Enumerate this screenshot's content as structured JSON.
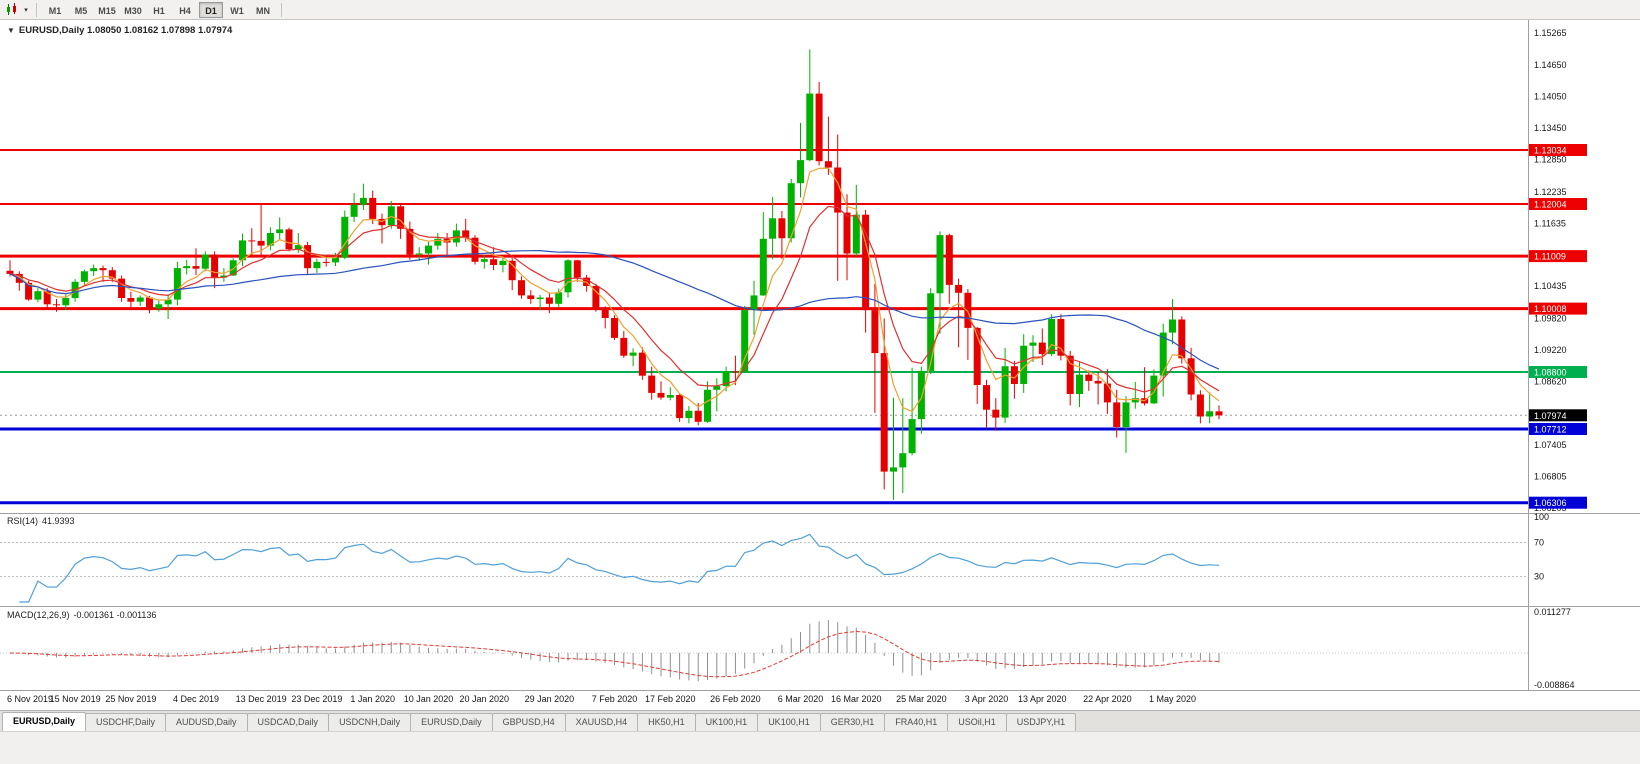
{
  "toolbar": {
    "caret_glyph": "▾",
    "timeframes": [
      "M1",
      "M5",
      "M15",
      "M30",
      "H1",
      "H4",
      "D1",
      "W1",
      "MN"
    ],
    "active_timeframe": "D1"
  },
  "chart": {
    "menu_glyph": "▼",
    "title": "EURUSD,Daily 1.08050 1.08162 1.07898 1.07974",
    "symbol": "EURUSD",
    "period": "Daily",
    "open": "1.08050",
    "high": "1.08162",
    "low": "1.07898",
    "close": "1.07974",
    "colors": {
      "background": "#FFFFFF",
      "bull": "#00B200",
      "bear": "#E60000",
      "separator": "#A0A0A0",
      "axis_text": "#151515",
      "current_price_line": "#9A9A9A"
    },
    "moving_averages": [
      {
        "type": "EMA",
        "period": 5,
        "color": "#F0A030"
      },
      {
        "type": "EMA",
        "period": 10,
        "color": "#E03030"
      },
      {
        "type": "SMA",
        "period": 40,
        "color": "#2A52BE"
      }
    ],
    "price_scale_ticks": [
      "1.15265",
      "1.14650",
      "1.14050",
      "1.13450",
      "1.12850",
      "1.12235",
      "1.11635",
      "1.10435",
      "1.09820",
      "1.09220",
      "1.08620",
      "1.07405",
      "1.06805",
      "1.06205"
    ],
    "hlines": [
      {
        "price": 1.13034,
        "label": "1.13034",
        "color": "#EE0000",
        "width": 2
      },
      {
        "price": 1.12004,
        "label": "1.12004",
        "color": "#EE0000",
        "width": 2
      },
      {
        "price": 1.11009,
        "label": "1.11009",
        "color": "#EE0000",
        "width": 3
      },
      {
        "price": 1.10008,
        "label": "1.10008",
        "color": "#EE0000",
        "width": 3
      },
      {
        "price": 1.088,
        "label": "1.08800",
        "color": "#00B050",
        "width": 2
      },
      {
        "price": 1.07712,
        "label": "1.07712",
        "color": "#0000D8",
        "width": 3
      },
      {
        "price": 1.06306,
        "label": "1.06306",
        "color": "#0000D8",
        "width": 3
      }
    ],
    "current_price": {
      "label": "1.07974",
      "value": 1.07974,
      "label_bg": "#000000"
    },
    "date_labels": [
      {
        "label": "6 Nov 2019",
        "i": 0
      },
      {
        "label": "15 Nov 2019",
        "i": 7
      },
      {
        "label": "25 Nov 2019",
        "i": 13
      },
      {
        "label": "4 Dec 2019",
        "i": 20
      },
      {
        "label": "13 Dec 2019",
        "i": 27
      },
      {
        "label": "23 Dec 2019",
        "i": 33
      },
      {
        "label": "1 Jan 2020",
        "i": 39
      },
      {
        "label": "10 Jan 2020",
        "i": 45
      },
      {
        "label": "20 Jan 2020",
        "i": 51
      },
      {
        "label": "29 Jan 2020",
        "i": 58
      },
      {
        "label": "7 Feb 2020",
        "i": 65
      },
      {
        "label": "17 Feb 2020",
        "i": 71
      },
      {
        "label": "26 Feb 2020",
        "i": 78
      },
      {
        "label": "6 Mar 2020",
        "i": 85
      },
      {
        "label": "16 Mar 2020",
        "i": 91
      },
      {
        "label": "25 Mar 2020",
        "i": 98
      },
      {
        "label": "3 Apr 2020",
        "i": 105
      },
      {
        "label": "13 Apr 2020",
        "i": 111
      },
      {
        "label": "22 Apr 2020",
        "i": 118
      },
      {
        "label": "1 May 2020",
        "i": 125
      }
    ],
    "candles": [
      [
        1.1073,
        1.1093,
        1.1062,
        1.1067
      ],
      [
        1.1067,
        1.1072,
        1.1035,
        1.105
      ],
      [
        1.105,
        1.1054,
        1.1016,
        1.1018
      ],
      [
        1.1018,
        1.104,
        1.1013,
        1.1034
      ],
      [
        1.1034,
        1.104,
        1.1002,
        1.1009
      ],
      [
        1.1009,
        1.1019,
        1.0995,
        1.1007
      ],
      [
        1.1007,
        1.1028,
        1.0998,
        1.1021
      ],
      [
        1.1021,
        1.1057,
        1.1014,
        1.1052
      ],
      [
        1.1052,
        1.1075,
        1.1046,
        1.1072
      ],
      [
        1.1072,
        1.1085,
        1.1063,
        1.1078
      ],
      [
        1.1078,
        1.1083,
        1.1052,
        1.1074
      ],
      [
        1.1074,
        1.108,
        1.1052,
        1.1058
      ],
      [
        1.1058,
        1.1064,
        1.1014,
        1.1021
      ],
      [
        1.1021,
        1.1033,
        1.1003,
        1.1014
      ],
      [
        1.1014,
        1.1026,
        1.1006,
        1.1022
      ],
      [
        1.1022,
        1.1025,
        1.0992,
        1.1001
      ],
      [
        1.1001,
        1.1016,
        1.0995,
        1.1009
      ],
      [
        1.1009,
        1.1028,
        1.0981,
        1.1018
      ],
      [
        1.1018,
        1.109,
        1.1007,
        1.1078
      ],
      [
        1.1078,
        1.1094,
        1.1066,
        1.1082
      ],
      [
        1.1082,
        1.1116,
        1.1065,
        1.1077
      ],
      [
        1.1077,
        1.111,
        1.1072,
        1.1104
      ],
      [
        1.1104,
        1.111,
        1.104,
        1.106
      ],
      [
        1.106,
        1.1078,
        1.1052,
        1.1064
      ],
      [
        1.1064,
        1.1097,
        1.1063,
        1.1093
      ],
      [
        1.1093,
        1.1144,
        1.1082,
        1.1131
      ],
      [
        1.1131,
        1.1154,
        1.1103,
        1.113
      ],
      [
        1.113,
        1.12,
        1.1102,
        1.1121
      ],
      [
        1.1121,
        1.1156,
        1.1112,
        1.1145
      ],
      [
        1.1145,
        1.1175,
        1.1133,
        1.1152
      ],
      [
        1.1152,
        1.1155,
        1.111,
        1.1114
      ],
      [
        1.1114,
        1.1145,
        1.1107,
        1.1122
      ],
      [
        1.1122,
        1.1128,
        1.1066,
        1.1078
      ],
      [
        1.1078,
        1.1096,
        1.1069,
        1.109
      ],
      [
        1.109,
        1.1097,
        1.1081,
        1.1089
      ],
      [
        1.1089,
        1.1107,
        1.1082,
        1.1098
      ],
      [
        1.1098,
        1.1188,
        1.1095,
        1.1176
      ],
      [
        1.1176,
        1.1221,
        1.1166,
        1.1199
      ],
      [
        1.1199,
        1.1239,
        1.1189,
        1.1212
      ],
      [
        1.1212,
        1.1226,
        1.1162,
        1.1172
      ],
      [
        1.1172,
        1.1182,
        1.1125,
        1.116
      ],
      [
        1.116,
        1.1206,
        1.1153,
        1.1196
      ],
      [
        1.1196,
        1.1199,
        1.1134,
        1.1153
      ],
      [
        1.1153,
        1.1167,
        1.1094,
        1.1104
      ],
      [
        1.1104,
        1.1118,
        1.1092,
        1.1106
      ],
      [
        1.1106,
        1.1128,
        1.1085,
        1.1121
      ],
      [
        1.1121,
        1.1145,
        1.1113,
        1.1134
      ],
      [
        1.1134,
        1.1145,
        1.1104,
        1.1127
      ],
      [
        1.1127,
        1.1163,
        1.1119,
        1.115
      ],
      [
        1.115,
        1.1172,
        1.1128,
        1.1136
      ],
      [
        1.1136,
        1.1141,
        1.1085,
        1.109
      ],
      [
        1.109,
        1.1103,
        1.1077,
        1.1095
      ],
      [
        1.1095,
        1.1118,
        1.1074,
        1.1084
      ],
      [
        1.1084,
        1.1098,
        1.107,
        1.1092
      ],
      [
        1.1092,
        1.1098,
        1.1036,
        1.1055
      ],
      [
        1.1055,
        1.1062,
        1.102,
        1.1026
      ],
      [
        1.1026,
        1.1036,
        1.101,
        1.1019
      ],
      [
        1.1019,
        1.1027,
        1.0998,
        1.1022
      ],
      [
        1.1022,
        1.1031,
        1.0992,
        1.101
      ],
      [
        1.101,
        1.1039,
        1.1003,
        1.1032
      ],
      [
        1.1032,
        1.1095,
        1.1022,
        1.1093
      ],
      [
        1.1093,
        1.1094,
        1.1052,
        1.106
      ],
      [
        1.106,
        1.1065,
        1.1033,
        1.1044
      ],
      [
        1.1044,
        1.1048,
        1.0995,
        1.0999
      ],
      [
        1.0999,
        1.1005,
        1.0963,
        1.0983
      ],
      [
        1.0983,
        1.0988,
        1.0941,
        1.0945
      ],
      [
        1.0945,
        1.0958,
        1.0907,
        1.0911
      ],
      [
        1.0911,
        1.0925,
        1.0891,
        1.0917
      ],
      [
        1.0917,
        1.0927,
        1.0865,
        1.0873
      ],
      [
        1.0873,
        1.089,
        1.0827,
        1.084
      ],
      [
        1.084,
        1.0862,
        1.0827,
        1.0831
      ],
      [
        1.0831,
        1.0851,
        1.0826,
        1.0836
      ],
      [
        1.0836,
        1.0839,
        1.0785,
        1.0792
      ],
      [
        1.0792,
        1.0815,
        1.0782,
        1.0806
      ],
      [
        1.0806,
        1.0821,
        1.0778,
        1.0785
      ],
      [
        1.0785,
        1.0862,
        1.0783,
        1.0846
      ],
      [
        1.0846,
        1.0868,
        1.0805,
        1.0853
      ],
      [
        1.0853,
        1.089,
        1.0843,
        1.0881
      ],
      [
        1.0881,
        1.0911,
        1.0855,
        1.088
      ],
      [
        1.088,
        1.1006,
        1.0878,
        1.0998
      ],
      [
        1.0998,
        1.1054,
        1.0951,
        1.1026
      ],
      [
        1.1026,
        1.1185,
        1.1025,
        1.1134
      ],
      [
        1.1134,
        1.1214,
        1.1095,
        1.1173
      ],
      [
        1.1173,
        1.1187,
        1.1096,
        1.1135
      ],
      [
        1.1135,
        1.1248,
        1.1127,
        1.124
      ],
      [
        1.124,
        1.1355,
        1.1213,
        1.1284
      ],
      [
        1.1284,
        1.1495,
        1.1282,
        1.1411
      ],
      [
        1.1411,
        1.1433,
        1.1274,
        1.1282
      ],
      [
        1.1282,
        1.1367,
        1.1256,
        1.127
      ],
      [
        1.127,
        1.1333,
        1.1054,
        1.1184
      ],
      [
        1.1184,
        1.1219,
        1.1055,
        1.1106
      ],
      [
        1.1106,
        1.1237,
        1.1101,
        1.118
      ],
      [
        1.118,
        1.1189,
        1.0955,
        1.0998
      ],
      [
        1.0998,
        1.1048,
        1.0802,
        1.0916
      ],
      [
        1.0916,
        1.0982,
        1.0656,
        1.069
      ],
      [
        1.069,
        1.0831,
        1.0636,
        1.0698
      ],
      [
        1.0698,
        1.083,
        1.0649,
        1.0725
      ],
      [
        1.0725,
        1.0888,
        1.0721,
        1.079
      ],
      [
        1.079,
        1.089,
        1.0762,
        1.0882
      ],
      [
        1.0882,
        1.104,
        1.0876,
        1.103
      ],
      [
        1.103,
        1.1148,
        1.0953,
        1.1141
      ],
      [
        1.1141,
        1.1144,
        1.101,
        1.1046
      ],
      [
        1.1046,
        1.1058,
        1.0927,
        1.1031
      ],
      [
        1.1031,
        1.1038,
        1.0903,
        1.0964
      ],
      [
        1.0964,
        1.0966,
        1.0819,
        1.0855
      ],
      [
        1.0855,
        1.0865,
        1.0773,
        1.0808
      ],
      [
        1.0808,
        1.083,
        1.0768,
        1.0793
      ],
      [
        1.0793,
        1.0926,
        1.0783,
        1.0891
      ],
      [
        1.0891,
        1.0901,
        1.0829,
        1.0857
      ],
      [
        1.0857,
        1.0952,
        1.084,
        1.093
      ],
      [
        1.093,
        1.095,
        1.0899,
        1.0936
      ],
      [
        1.0936,
        1.0963,
        1.0893,
        1.0914
      ],
      [
        1.0914,
        1.099,
        1.091,
        1.0981
      ],
      [
        1.0981,
        1.099,
        1.0902,
        1.0911
      ],
      [
        1.0911,
        1.092,
        1.0816,
        1.0838
      ],
      [
        1.0838,
        1.0898,
        1.0813,
        1.0875
      ],
      [
        1.0875,
        1.0883,
        1.0844,
        1.0863
      ],
      [
        1.0863,
        1.088,
        1.0818,
        1.0858
      ],
      [
        1.0858,
        1.0885,
        1.08,
        1.0822
      ],
      [
        1.0822,
        1.0846,
        1.0755,
        1.0775
      ],
      [
        1.0775,
        1.0834,
        1.0726,
        1.0822
      ],
      [
        1.0822,
        1.0861,
        1.081,
        1.083
      ],
      [
        1.083,
        1.0889,
        1.0816,
        1.082
      ],
      [
        1.082,
        1.0885,
        1.0819,
        1.0873
      ],
      [
        1.0873,
        1.0972,
        1.0833,
        1.0955
      ],
      [
        1.0955,
        1.1019,
        1.0933,
        1.098
      ],
      [
        1.098,
        1.0986,
        1.0896,
        1.0906
      ],
      [
        1.0906,
        1.0926,
        1.0826,
        1.0837
      ],
      [
        1.0837,
        1.0845,
        1.0782,
        1.0795
      ],
      [
        1.0795,
        1.0841,
        1.0782,
        1.0805
      ],
      [
        1.0805,
        1.08162,
        1.07898,
        1.07974
      ]
    ]
  },
  "panels": {
    "rsi": {
      "name": "RSI(14)",
      "value": "41.9393",
      "period": 14,
      "color": "#4FA0D8",
      "levels": [
        70,
        30
      ],
      "scale_labels": [
        {
          "value": 100,
          "label": "100"
        },
        {
          "value": 70,
          "label": "70"
        },
        {
          "value": 30,
          "label": "30"
        }
      ]
    },
    "macd": {
      "name": "MACD(12,26,9)",
      "value": "-0.001361 -0.001136",
      "fast": 12,
      "slow": 26,
      "signal": 9,
      "histogram_color": "#8F8F8F",
      "signal_color": "#E53935",
      "scale_max": {
        "value": 0.011277,
        "label": "0.011277"
      },
      "scale_min": {
        "value": -0.008864,
        "label": "-0.008864"
      }
    }
  },
  "tab_bar": {
    "tabs": [
      {
        "label": "EURUSD,Daily",
        "active": true
      },
      {
        "label": "USDCHF,Daily",
        "active": false
      },
      {
        "label": "AUDUSD,Daily",
        "active": false
      },
      {
        "label": "USDCAD,Daily",
        "active": false
      },
      {
        "label": "USDCNH,Daily",
        "active": false
      },
      {
        "label": "EURUSD,Daily",
        "active": false
      },
      {
        "label": "GBPUSD,H4",
        "active": false
      },
      {
        "label": "XAUUSD,H4",
        "active": false
      },
      {
        "label": "HK50,H1",
        "active": false
      },
      {
        "label": "UK100,H1",
        "active": false
      },
      {
        "label": "UK100,H1",
        "active": false
      },
      {
        "label": "GER30,H1",
        "active": false
      },
      {
        "label": "FRA40,H1",
        "active": false
      },
      {
        "label": "USOil,H1",
        "active": false
      },
      {
        "label": "USDJPY,H1",
        "active": false
      }
    ]
  }
}
